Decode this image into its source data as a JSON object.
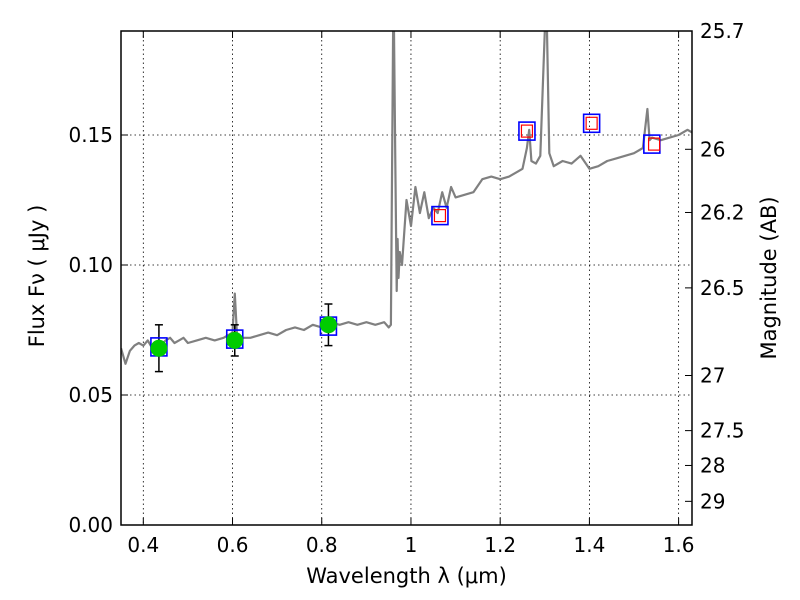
{
  "chart_data": {
    "type": "line",
    "xlabel": "Wavelength  λ (μm)",
    "ylabel": "Flux  Fν  ( μJy )",
    "ylabel_right": "Magnitude (AB)",
    "xlim": [
      0.35,
      1.63
    ],
    "ylim": [
      0.0,
      0.19
    ],
    "grid": true,
    "x_ticks": [
      0.4,
      0.6,
      0.8,
      1.0,
      1.2,
      1.4,
      1.6
    ],
    "x_tick_labels": [
      "0.4",
      "0.6",
      "0.8",
      "1",
      "1.2",
      "1.4",
      "1.6"
    ],
    "y_ticks": [
      0.0,
      0.05,
      0.1,
      0.15
    ],
    "y_tick_labels": [
      "0.00",
      "0.05",
      "0.10",
      "0.15"
    ],
    "right_ticks": [
      {
        "label": "25.7",
        "flux": 0.19
      },
      {
        "label": "26",
        "flux": 0.1445
      },
      {
        "label": "26.2",
        "flux": 0.1202
      },
      {
        "label": "26.5",
        "flux": 0.0912
      },
      {
        "label": "27",
        "flux": 0.0575
      },
      {
        "label": "27.5",
        "flux": 0.0363
      },
      {
        "label": "28",
        "flux": 0.0229
      },
      {
        "label": "29",
        "flux": 0.0091
      }
    ],
    "colors": {
      "spectrum": "#808080",
      "observed": "#00cc00",
      "model_box": "#0000ff",
      "upper_marker": "#ff0000",
      "errorbar": "#000000",
      "grid": "#000000"
    },
    "series": [
      {
        "kind": "spectrum",
        "x": [
          0.35,
          0.36,
          0.37,
          0.38,
          0.39,
          0.4,
          0.41,
          0.42,
          0.43,
          0.44,
          0.45,
          0.46,
          0.47,
          0.48,
          0.49,
          0.5,
          0.52,
          0.54,
          0.56,
          0.58,
          0.59,
          0.6,
          0.605,
          0.61,
          0.62,
          0.64,
          0.66,
          0.68,
          0.7,
          0.72,
          0.74,
          0.76,
          0.78,
          0.8,
          0.82,
          0.84,
          0.86,
          0.88,
          0.9,
          0.92,
          0.94,
          0.95,
          0.955,
          0.96,
          0.962,
          0.965,
          0.968,
          0.97,
          0.972,
          0.975,
          0.98,
          0.99,
          1.0,
          1.01,
          1.02,
          1.03,
          1.04,
          1.05,
          1.06,
          1.07,
          1.08,
          1.09,
          1.1,
          1.12,
          1.14,
          1.16,
          1.18,
          1.2,
          1.22,
          1.24,
          1.25,
          1.26,
          1.265,
          1.27,
          1.28,
          1.29,
          1.3,
          1.305,
          1.31,
          1.32,
          1.34,
          1.36,
          1.38,
          1.4,
          1.42,
          1.44,
          1.46,
          1.48,
          1.5,
          1.52,
          1.53,
          1.535,
          1.54,
          1.56,
          1.58,
          1.6,
          1.62,
          1.63
        ],
        "y": [
          0.068,
          0.062,
          0.067,
          0.069,
          0.07,
          0.069,
          0.071,
          0.068,
          0.07,
          0.069,
          0.071,
          0.072,
          0.07,
          0.071,
          0.072,
          0.07,
          0.071,
          0.072,
          0.071,
          0.072,
          0.073,
          0.074,
          0.089,
          0.073,
          0.072,
          0.072,
          0.073,
          0.074,
          0.073,
          0.075,
          0.076,
          0.075,
          0.077,
          0.076,
          0.078,
          0.077,
          0.078,
          0.077,
          0.078,
          0.077,
          0.078,
          0.076,
          0.077,
          0.19,
          0.19,
          0.14,
          0.09,
          0.11,
          0.095,
          0.105,
          0.1,
          0.125,
          0.115,
          0.13,
          0.12,
          0.128,
          0.118,
          0.122,
          0.12,
          0.128,
          0.122,
          0.13,
          0.126,
          0.127,
          0.128,
          0.133,
          0.134,
          0.133,
          0.134,
          0.136,
          0.137,
          0.145,
          0.152,
          0.14,
          0.139,
          0.142,
          0.19,
          0.19,
          0.143,
          0.138,
          0.14,
          0.139,
          0.142,
          0.137,
          0.138,
          0.14,
          0.141,
          0.142,
          0.143,
          0.145,
          0.16,
          0.148,
          0.149,
          0.148,
          0.149,
          0.15,
          0.152,
          0.151
        ]
      },
      {
        "kind": "observed",
        "x": [
          0.435,
          0.605,
          0.815
        ],
        "y": [
          0.068,
          0.071,
          0.077
        ],
        "yerr": [
          0.009,
          0.006,
          0.008
        ]
      },
      {
        "kind": "model_box",
        "x": [
          0.435,
          0.605,
          0.815,
          1.065,
          1.26,
          1.405,
          1.54
        ],
        "y": [
          0.0685,
          0.0715,
          0.0765,
          0.119,
          0.1515,
          0.1545,
          0.1465
        ]
      },
      {
        "kind": "upper_marker",
        "x": [
          1.065,
          1.26,
          1.405,
          1.545
        ],
        "y": [
          0.119,
          0.1515,
          0.1545,
          0.1465
        ]
      }
    ]
  }
}
